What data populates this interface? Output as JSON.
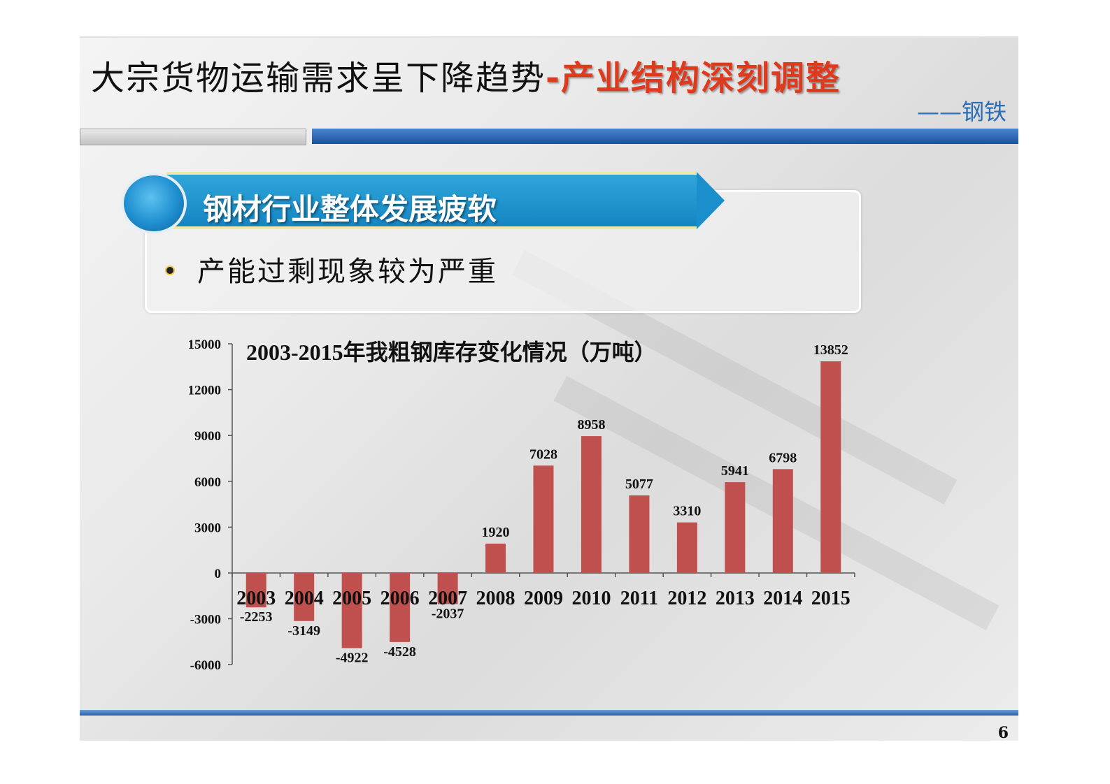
{
  "header": {
    "title_main": "大宗货物运输需求呈下降趋势",
    "title_accent": "-产业结构深刻调整",
    "subtitle": "——钢铁"
  },
  "section": {
    "heading": "钢材行业整体发展疲软",
    "bullet": "产能过剩现象较为严重"
  },
  "colors": {
    "bar": "#c0504d",
    "accent_red": "#e03a1e",
    "brand_blue": "#1585c2",
    "subtitle_blue": "#2a6db5"
  },
  "chart_data": {
    "type": "bar",
    "title": "2003-2015年我粗钢库存变化情况（万吨）",
    "categories": [
      "2003",
      "2004",
      "2005",
      "2006",
      "2007",
      "2008",
      "2009",
      "2010",
      "2011",
      "2012",
      "2013",
      "2014",
      "2015"
    ],
    "values": [
      -2253,
      -3149,
      -4922,
      -4528,
      -2037,
      1920,
      7028,
      8958,
      5077,
      3310,
      5941,
      6798,
      13852
    ],
    "ylim": [
      -6000,
      15000
    ],
    "yticks": [
      15000,
      12000,
      9000,
      6000,
      3000,
      0,
      -3000,
      -6000
    ],
    "grid": false,
    "legend": "none"
  },
  "footer": {
    "page_number": "6"
  }
}
